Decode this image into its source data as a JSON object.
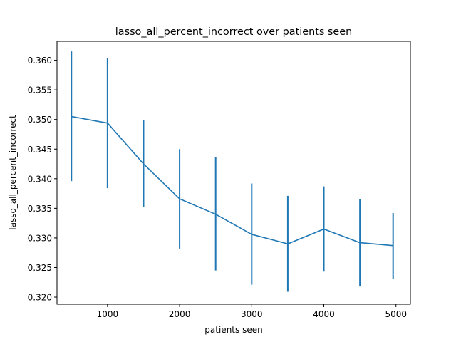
{
  "chart_data": {
    "type": "line",
    "title": "lasso_all_percent_incorrect over patients seen",
    "xlabel": "patients seen",
    "ylabel": "lasso_all_percent_incorrect",
    "xlim": [
      300,
      5200
    ],
    "ylim": [
      0.3188,
      0.3632
    ],
    "xticks": [
      1000,
      2000,
      3000,
      4000,
      5000
    ],
    "yticks": [
      0.32,
      0.325,
      0.33,
      0.335,
      0.34,
      0.345,
      0.35,
      0.355,
      0.36
    ],
    "ytick_labels": [
      "0.320",
      "0.325",
      "0.330",
      "0.335",
      "0.340",
      "0.345",
      "0.350",
      "0.355",
      "0.360"
    ],
    "grid": false,
    "line_color": "#1f77b4",
    "series": [
      {
        "x": [
          500,
          1000,
          1500,
          2000,
          2500,
          3000,
          3500,
          4000,
          4500,
          4960
        ],
        "y": [
          0.3505,
          0.3494,
          0.3425,
          0.3366,
          0.334,
          0.3306,
          0.329,
          0.3315,
          0.3292,
          0.3287
        ],
        "err_low": [
          0.3396,
          0.3384,
          0.3352,
          0.3282,
          0.3245,
          0.3221,
          0.3209,
          0.3243,
          0.3218,
          0.3231
        ],
        "err_high": [
          0.3615,
          0.3604,
          0.3499,
          0.345,
          0.3436,
          0.3392,
          0.3371,
          0.3387,
          0.3365,
          0.3342
        ]
      }
    ]
  }
}
